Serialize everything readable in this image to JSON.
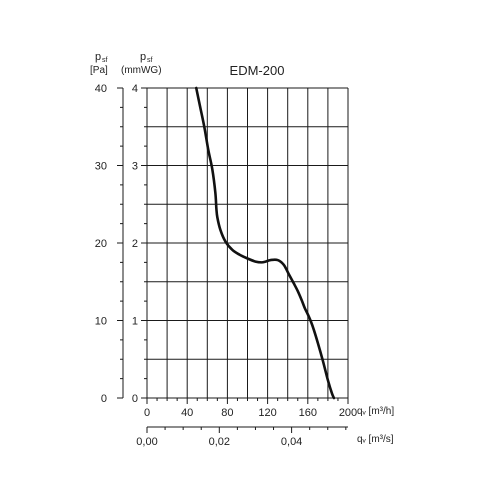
{
  "chart_data": {
    "type": "line",
    "title": "EDM-200",
    "left_axis_1": {
      "symbol": "p",
      "subscript": "sf",
      "unit": "[Pa]",
      "ticks": [
        "0",
        "10",
        "20",
        "30",
        "40"
      ],
      "range": [
        0,
        40
      ]
    },
    "left_axis_2": {
      "symbol": "p",
      "subscript": "sf",
      "unit": "(mmWG)",
      "ticks": [
        "0",
        "1",
        "2",
        "3",
        "4"
      ],
      "range": [
        0,
        4
      ]
    },
    "bottom_axis_1": {
      "label": "qᵥ [m³/h]",
      "ticks": [
        "0",
        "40",
        "80",
        "120",
        "160",
        "200"
      ],
      "range": [
        0,
        200
      ]
    },
    "bottom_axis_2": {
      "label": "qᵥ [m³/s]",
      "ticks": [
        "0,00",
        "0,02",
        "0,04"
      ],
      "tick_values": [
        0,
        0.02,
        0.04
      ],
      "range": [
        0,
        0.0556
      ]
    },
    "grid": true,
    "series": [
      {
        "x": [
          49,
          53,
          57,
          61,
          65,
          68,
          69,
          70,
          73,
          78,
          85,
          92,
          100,
          108,
          114,
          118,
          123,
          130,
          136,
          141,
          146,
          150,
          154,
          157,
          160,
          163,
          166,
          170,
          175,
          180,
          184,
          186
        ],
        "y": [
          40,
          37.5,
          35,
          32,
          29.5,
          26.5,
          24.5,
          23.3,
          21.7,
          20.2,
          19.1,
          18.5,
          18.0,
          17.6,
          17.5,
          17.6,
          17.8,
          17.8,
          17.2,
          16.0,
          14.8,
          13.8,
          12.6,
          11.6,
          10.8,
          9.9,
          8.8,
          7.1,
          4.8,
          2.3,
          0.6,
          0
        ]
      }
    ],
    "color": "#111111"
  }
}
